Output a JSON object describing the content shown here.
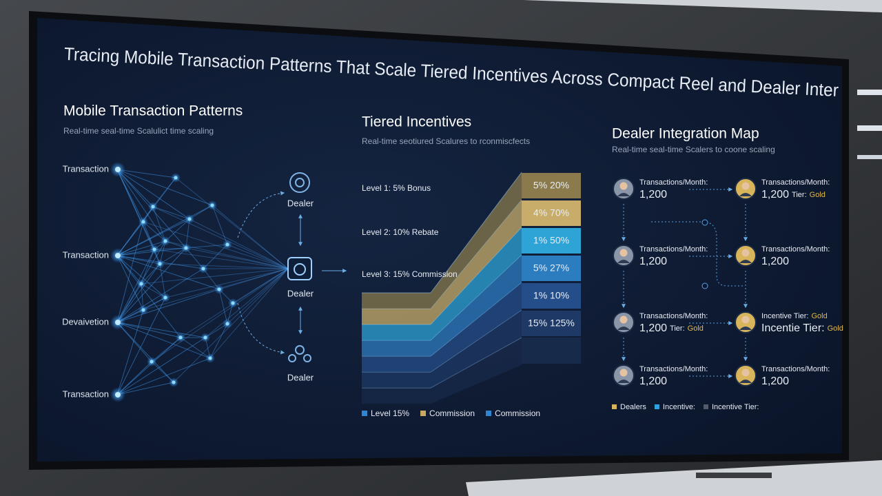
{
  "title": "Tracing Mobile Transaction Patterns That Scale Tiered Incentives Across Compact Reel and Dealer Inter",
  "transaction_patterns": {
    "title": "Mobile Transaction Patterns",
    "subtitle": "Real-time seal-time Scalulict time scaling",
    "sources": [
      "Transaction",
      "Transaction",
      "Devaivetion",
      "Transaction"
    ],
    "dealers": [
      "Dealer",
      "Dealer",
      "Dealer"
    ]
  },
  "tiered_incentives": {
    "title": "Tiered Incentives",
    "subtitle": "Real-time seotiured Scalures to rconmiscfects",
    "levels": [
      "Level 1: 5% Bonus",
      "Level 2: 10% Rebate",
      "Level 3: 15% Commission"
    ],
    "tiers": [
      {
        "label": "5% 20%",
        "color": "#8a7a4c",
        "text_color": "#1c2234"
      },
      {
        "label": "4% 70%",
        "color": "#c8ad6a",
        "text_color": "#1c2234"
      },
      {
        "label": "1% 50%",
        "color": "#2ea3d6",
        "text_color": "#ffffff"
      },
      {
        "label": "5% 27%",
        "color": "#2c7cc0",
        "text_color": "#ffffff"
      },
      {
        "label": "1% 10%",
        "color": "#244e8a",
        "text_color": "#ffffff"
      },
      {
        "label": "15% 125%",
        "color": "#1e3966",
        "text_color": "#ffffff"
      }
    ],
    "legend": [
      {
        "label": "Level 15%",
        "color": "#2f86d0"
      },
      {
        "label": "Commission",
        "color": "#c9a960"
      },
      {
        "label": "Commission",
        "color": "#2f86d0"
      }
    ]
  },
  "dealer_map": {
    "title": "Dealer Integration Map",
    "subtitle": "Real-time seal-time Scalers to coone scaling",
    "dealers": [
      {
        "lines": [
          [
            {
              "text": "Transactions/Month:"
            }
          ],
          [
            {
              "text": "1,200"
            }
          ]
        ]
      },
      {
        "lines": [
          [
            {
              "text": "Transactions/Month:"
            }
          ],
          [
            {
              "text": "1,200"
            }
          ]
        ]
      },
      {
        "lines": [
          [
            {
              "text": "Transactions/Month:"
            }
          ],
          [
            {
              "text": "1,200"
            },
            {
              "text": "Tier:"
            },
            {
              "text": "Gold",
              "accent": true
            }
          ]
        ]
      },
      {
        "lines": [
          [
            {
              "text": "Transactions/Month:"
            }
          ],
          [
            {
              "text": "1,200"
            }
          ]
        ]
      },
      {
        "lines": [
          [
            {
              "text": "Transactions/Month:"
            }
          ],
          [
            {
              "text": "1,200"
            },
            {
              "text": "Tier:"
            },
            {
              "text": "Gold",
              "accent": true
            }
          ]
        ]
      },
      {
        "lines": [
          [
            {
              "text": "Transactions/Month:"
            }
          ],
          [
            {
              "text": "1,200"
            }
          ]
        ]
      },
      {
        "lines": [
          [
            {
              "text": "Incentive Tier:"
            },
            {
              "text": "Gold",
              "accent": true
            }
          ],
          [
            {
              "text": "Incentie Tier:"
            },
            {
              "text": "Gold",
              "accent": true
            }
          ]
        ]
      },
      {
        "lines": [
          [
            {
              "text": "Transactions/Month:"
            }
          ],
          [
            {
              "text": "1,200"
            }
          ]
        ]
      }
    ],
    "legend": [
      {
        "label": "Dealers",
        "color": "#d6b45e"
      },
      {
        "label": "Incentive:",
        "color": "#2fa3e0"
      },
      {
        "label": "Incentive Tier:",
        "color": "#555a66"
      }
    ]
  }
}
